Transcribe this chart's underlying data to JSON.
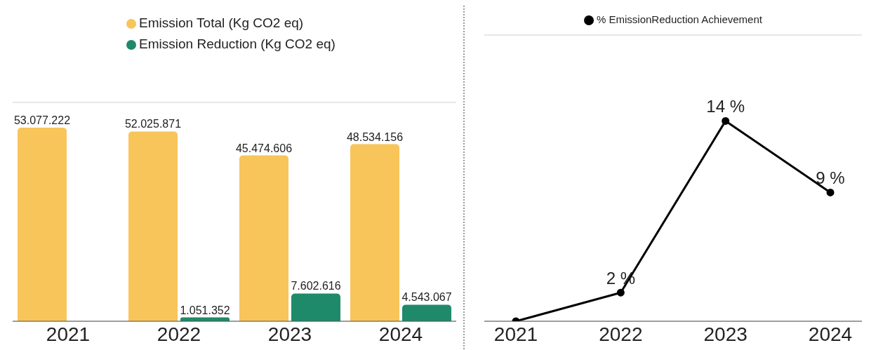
{
  "chart_data": [
    {
      "type": "bar",
      "categories": [
        "2021",
        "2022",
        "2023",
        "2024"
      ],
      "series": [
        {
          "name": "Emission Total (Kg CO2 eq)",
          "color": "#f7c55a",
          "values": [
            53077222,
            52025871,
            45474606,
            48534156
          ],
          "value_labels": [
            "53.077.222",
            "52.025.871",
            "45.474.606",
            "48.534.156"
          ]
        },
        {
          "name": "Emission Reduction (Kg CO2 eq)",
          "color": "#1f8a6a",
          "values": [
            null,
            1051352,
            7602616,
            4543067
          ],
          "value_labels": [
            null,
            "1.051.352",
            "7.602.616",
            "4.543.067"
          ]
        }
      ],
      "ylim": [
        0,
        60000000
      ],
      "grid": "y",
      "legend": "top",
      "tick_labels": "x"
    },
    {
      "type": "line",
      "categories": [
        "2021",
        "2022",
        "2023",
        "2024"
      ],
      "series": [
        {
          "name": "% EmissionReduction Achievement",
          "color": "#000000",
          "values": [
            0,
            2,
            14,
            9
          ],
          "value_labels": [
            null,
            "2 %",
            "14 %",
            "9 %"
          ]
        }
      ],
      "ylim": [
        0,
        20
      ],
      "grid": "y",
      "legend": "top",
      "tick_labels": "x",
      "marker": "circle",
      "line_style": "solid"
    }
  ]
}
